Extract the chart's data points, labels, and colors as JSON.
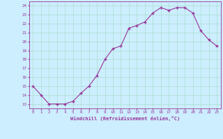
{
  "x": [
    0,
    1,
    2,
    3,
    4,
    5,
    6,
    7,
    8,
    9,
    10,
    11,
    12,
    13,
    14,
    15,
    16,
    17,
    18,
    19,
    20,
    21,
    22,
    23
  ],
  "y": [
    15,
    14,
    13,
    13,
    13,
    13.3,
    14.2,
    15,
    16.2,
    18,
    19.2,
    19.5,
    21.5,
    21.8,
    22.2,
    23.2,
    23.8,
    23.5,
    23.8,
    23.8,
    23.2,
    21.2,
    20.2,
    19.5
  ],
  "line_color": "#993399",
  "marker": "+",
  "marker_color": "#993399",
  "bg_color": "#cceeff",
  "grid_color": "#aaddcc",
  "xlabel": "Windchill (Refroidissement éolien,°C)",
  "xlabel_color": "#993399",
  "ylabel_ticks": [
    13,
    14,
    15,
    16,
    17,
    18,
    19,
    20,
    21,
    22,
    23,
    24
  ],
  "ylim": [
    12.5,
    24.5
  ],
  "xlim": [
    -0.5,
    23.5
  ],
  "tick_color": "#993399"
}
